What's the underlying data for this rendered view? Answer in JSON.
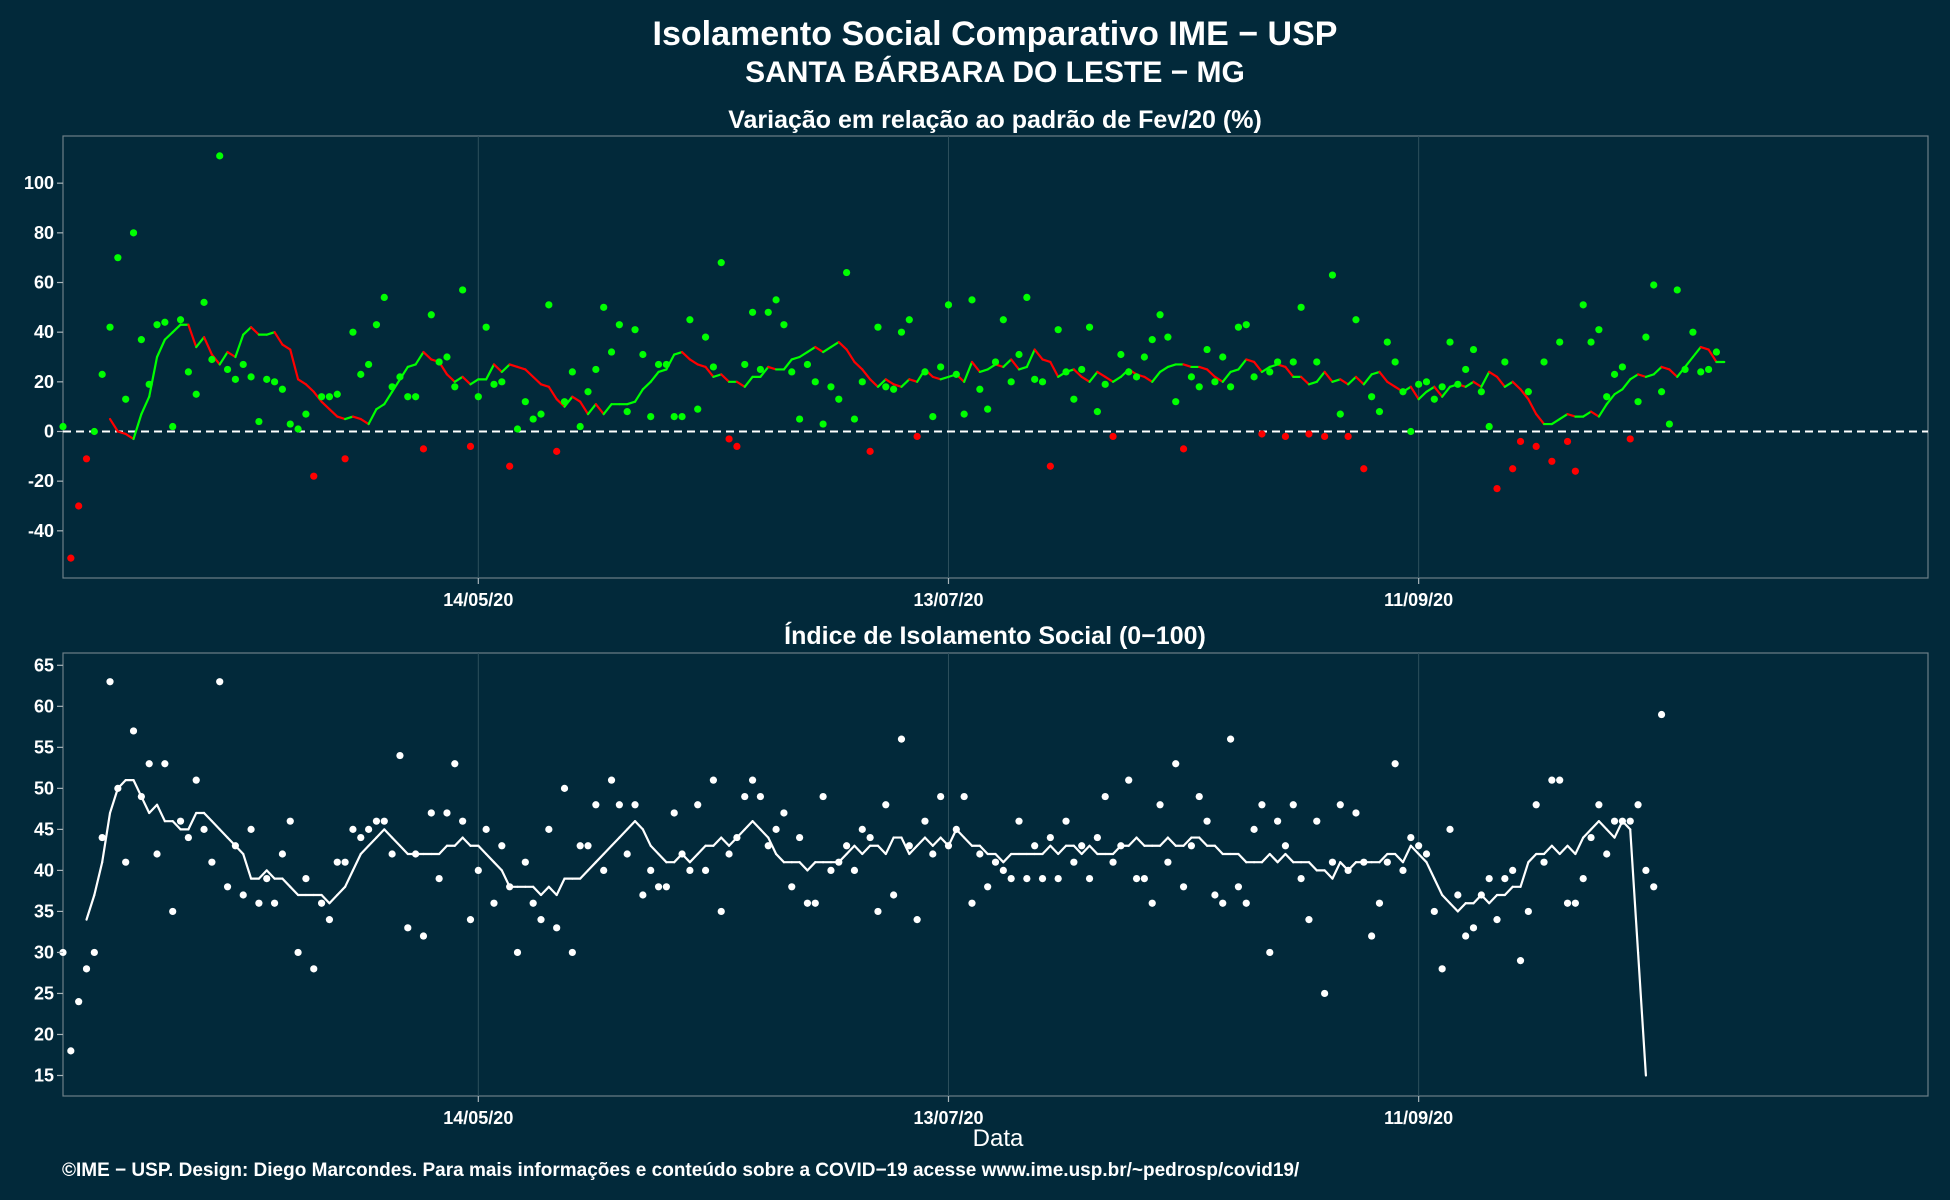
{
  "header": {
    "title": "Isolamento Social Comparativo IME − USP",
    "subtitle": "SANTA BÁRBARA DO LESTE − MG"
  },
  "footer": {
    "credits": "©IME − USP. Design: Diego Marcondes. Para mais informações e conteúdo sobre a COVID−19 acesse www.ime.usp.br/~pedrosp/covid19/"
  },
  "colors": {
    "background": "#02293a",
    "positive": "#00ff00",
    "negative": "#ff0000",
    "index": "#ffffff",
    "grid": "#2d4f5c"
  },
  "chart_data": [
    {
      "type": "scatter",
      "title": "Variação em relação ao padrão de Fev/20 (%)",
      "xlabel": "",
      "ylabel": "",
      "x_start": "2020-03-22",
      "x_end": "2020-11-15",
      "x_ticks": [
        {
          "date": "2020-05-14",
          "label": "14/05/20"
        },
        {
          "date": "2020-07-13",
          "label": "13/07/20"
        },
        {
          "date": "2020-09-11",
          "label": "11/09/20"
        }
      ],
      "ylim": [
        -59,
        119
      ],
      "y_ticks": [
        -40,
        -20,
        0,
        20,
        40,
        60,
        80,
        100
      ],
      "reference_line": 0,
      "series": [
        {
          "values": [
            2,
            -51,
            -30,
            -11,
            0,
            23,
            42,
            70,
            13,
            80,
            37,
            19,
            43,
            44,
            2,
            45,
            24,
            15,
            52,
            29,
            111,
            25,
            21,
            27,
            22,
            4,
            21,
            20,
            17,
            3,
            1,
            7,
            -18,
            14,
            14,
            15,
            -11,
            40,
            23,
            27,
            43,
            54,
            18,
            22,
            14,
            14,
            -7,
            47,
            28,
            30,
            18,
            57,
            -6,
            14,
            42,
            19,
            20,
            -14,
            1,
            12,
            5,
            7,
            51,
            -8,
            12,
            24,
            2,
            16,
            25,
            50,
            32,
            43,
            8,
            41,
            31,
            6,
            27,
            27,
            6,
            6,
            45,
            9,
            38,
            26,
            68,
            -3,
            -6,
            27,
            48,
            25,
            48,
            53,
            43,
            24,
            5,
            27,
            20,
            3,
            18,
            13,
            64,
            5,
            20,
            -8,
            42,
            18,
            17,
            40,
            45,
            -2,
            24,
            6,
            26,
            51,
            23,
            7,
            53,
            17,
            9,
            28,
            45,
            20,
            31,
            54,
            21,
            20,
            -14,
            41,
            24,
            13,
            25,
            42,
            8,
            19,
            -2,
            31,
            24,
            22,
            30,
            37,
            47,
            38,
            12,
            -7,
            22,
            18,
            33,
            20,
            30,
            18,
            42,
            43,
            22,
            -1,
            24,
            28,
            -2,
            28,
            50,
            -1,
            28,
            -2,
            63,
            7,
            -2,
            45,
            -15,
            14,
            8,
            36,
            28,
            16,
            0,
            19,
            20,
            13,
            18,
            36,
            19,
            25,
            33,
            16,
            2,
            -23,
            28,
            -15,
            -4,
            16,
            -6,
            28,
            -12,
            36,
            -4,
            -16,
            51,
            36,
            41,
            14,
            23,
            26,
            -3,
            12,
            38,
            59,
            16,
            3,
            57,
            25,
            40,
            24,
            25,
            32
          ]
        },
        {
          "values": [
            null,
            null,
            null,
            null,
            null,
            null,
            5,
            0,
            -1,
            -3,
            7,
            14,
            30,
            37,
            40,
            43,
            43,
            34,
            38,
            31,
            27,
            32,
            30,
            39,
            42,
            39,
            39,
            40,
            35,
            33,
            21,
            19,
            16,
            12,
            9,
            6,
            5,
            6,
            5,
            3,
            9,
            11,
            16,
            21,
            26,
            27,
            32,
            29,
            28,
            23,
            20,
            22,
            19,
            21,
            21,
            27,
            24,
            27,
            26,
            25,
            22,
            19,
            18,
            13,
            10,
            14,
            12,
            7,
            11,
            7,
            11,
            11,
            11,
            12,
            17,
            20,
            24,
            25,
            31,
            32,
            29,
            27,
            26,
            22,
            23,
            20,
            20,
            18,
            22,
            22,
            26,
            25,
            25,
            29,
            30,
            32,
            34,
            32,
            34,
            36,
            33,
            28,
            25,
            21,
            18,
            21,
            19,
            18,
            21,
            20,
            25,
            22,
            21,
            22,
            23,
            20,
            28,
            24,
            25,
            27,
            26,
            29,
            25,
            26,
            33,
            29,
            28,
            22,
            24,
            25,
            22,
            20,
            24,
            22,
            20,
            22,
            25,
            23,
            22,
            20,
            24,
            26,
            27,
            27,
            26,
            26,
            25,
            22,
            20,
            24,
            25,
            29,
            28,
            24,
            26,
            27,
            26,
            22,
            22,
            19,
            20,
            24,
            20,
            21,
            19,
            22,
            19,
            23,
            24,
            20,
            18,
            16,
            18,
            13,
            16,
            18,
            14,
            18,
            19,
            18,
            20,
            18,
            24,
            22,
            18,
            20,
            17,
            13,
            7,
            3,
            3,
            5,
            7,
            6,
            6,
            8,
            6,
            11,
            15,
            17,
            21,
            23,
            22,
            23,
            26,
            25,
            22,
            26,
            30,
            34,
            33,
            28,
            28,
            null,
            null,
            null,
            null,
            null,
            null
          ]
        }
      ]
    },
    {
      "type": "scatter",
      "title": "Índice de Isolamento Social (0−100)",
      "xlabel": "Data",
      "ylabel": "",
      "x_start": "2020-03-22",
      "x_end": "2020-11-15",
      "x_ticks": [
        {
          "date": "2020-05-14",
          "label": "14/05/20"
        },
        {
          "date": "2020-07-13",
          "label": "13/07/20"
        },
        {
          "date": "2020-09-11",
          "label": "11/09/20"
        }
      ],
      "ylim": [
        12.5,
        66.5
      ],
      "y_ticks": [
        15,
        20,
        25,
        30,
        35,
        40,
        45,
        50,
        55,
        60,
        65
      ],
      "series": [
        {
          "values": [
            30,
            18,
            24,
            28,
            30,
            44,
            63,
            50,
            41,
            57,
            49,
            53,
            42,
            53,
            35,
            46,
            44,
            51,
            45,
            41,
            63,
            38,
            43,
            37,
            45,
            36,
            39,
            36,
            42,
            46,
            30,
            39,
            28,
            36,
            34,
            41,
            41,
            45,
            44,
            45,
            46,
            46,
            42,
            54,
            33,
            42,
            32,
            47,
            39,
            47,
            53,
            46,
            34,
            40,
            45,
            36,
            43,
            38,
            30,
            41,
            36,
            34,
            45,
            33,
            50,
            30,
            43,
            43,
            48,
            40,
            51,
            48,
            42,
            48,
            37,
            40,
            38,
            38,
            47,
            42,
            40,
            48,
            40,
            51,
            35,
            42,
            44,
            49,
            51,
            49,
            43,
            45,
            47,
            38,
            44,
            36,
            36,
            49,
            40,
            41,
            43,
            40,
            45,
            44,
            35,
            48,
            37,
            56,
            43,
            34,
            46,
            42,
            49,
            43,
            45,
            49,
            36,
            42,
            38,
            41,
            40,
            39,
            46,
            39,
            43,
            39,
            44,
            39,
            46,
            41,
            43,
            39,
            44,
            49,
            41,
            43,
            51,
            39,
            39,
            36,
            48,
            41,
            53,
            38,
            43,
            49,
            46,
            37,
            36,
            56,
            38,
            36,
            45,
            48,
            30,
            46,
            43,
            48,
            39,
            34,
            46,
            25,
            41,
            48,
            40,
            47,
            41,
            32,
            36,
            41,
            53,
            40,
            44,
            43,
            42,
            35,
            28,
            45,
            37,
            32,
            33,
            37,
            39,
            34,
            39,
            40,
            29,
            35,
            48,
            41,
            51,
            51,
            36,
            36,
            39,
            44,
            48,
            42,
            46,
            46,
            46,
            48,
            40,
            38,
            59
          ]
        },
        {
          "values": [
            null,
            null,
            null,
            34,
            37,
            41,
            47,
            50,
            51,
            51,
            49,
            47,
            48,
            46,
            46,
            45,
            45,
            47,
            47,
            46,
            45,
            44,
            43,
            42,
            39,
            39,
            40,
            39,
            39,
            38,
            37,
            37,
            37,
            37,
            36,
            37,
            38,
            40,
            42,
            43,
            44,
            45,
            44,
            43,
            42,
            42,
            42,
            42,
            42,
            43,
            43,
            44,
            43,
            43,
            42,
            41,
            40,
            38,
            38,
            38,
            38,
            37,
            38,
            37,
            39,
            39,
            39,
            40,
            41,
            42,
            43,
            44,
            45,
            46,
            45,
            43,
            42,
            41,
            41,
            42,
            41,
            42,
            43,
            43,
            44,
            43,
            44,
            45,
            46,
            45,
            44,
            42,
            41,
            41,
            41,
            40,
            41,
            41,
            41,
            41,
            42,
            43,
            42,
            43,
            43,
            42,
            44,
            44,
            42,
            43,
            44,
            43,
            44,
            43,
            45,
            44,
            43,
            43,
            42,
            42,
            41,
            42,
            42,
            42,
            42,
            42,
            43,
            42,
            43,
            43,
            42,
            43,
            42,
            42,
            42,
            43,
            43,
            44,
            43,
            43,
            43,
            44,
            43,
            43,
            44,
            44,
            43,
            43,
            42,
            42,
            42,
            41,
            41,
            41,
            42,
            41,
            42,
            41,
            41,
            41,
            40,
            40,
            39,
            41,
            40,
            41,
            41,
            41,
            41,
            42,
            42,
            41,
            43,
            42,
            41,
            39,
            37,
            36,
            35,
            36,
            36,
            37,
            36,
            37,
            37,
            38,
            38,
            41,
            42,
            42,
            43,
            42,
            43,
            42,
            44,
            45,
            46,
            45,
            44,
            46,
            45,
            30,
            15,
            null
          ]
        }
      ]
    }
  ]
}
